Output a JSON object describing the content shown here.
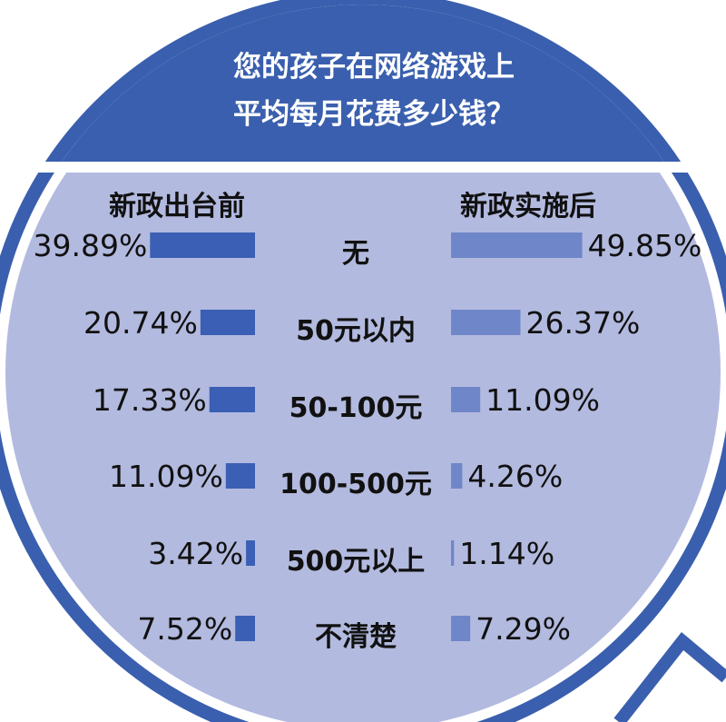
{
  "title": {
    "line1": "您的孩子在网络游戏上",
    "line2": "平均每月花费多少钱？"
  },
  "colors": {
    "dark_blue": "#3a5fae",
    "light_circle": "#b3badf",
    "before_bar": "#3a5fb4",
    "after_bar": "#6f86c8"
  },
  "chart_data": {
    "type": "bar",
    "orientation": "horizontal-butterfly",
    "categories": [
      "无",
      "50元以内",
      "50-100元",
      "100-500元",
      "500元以上",
      "不清楚"
    ],
    "unit": "%",
    "series": [
      {
        "name": "新政出台前",
        "values": [
          39.89,
          20.74,
          17.33,
          11.09,
          3.42,
          7.52
        ]
      },
      {
        "name": "新政实施后",
        "values": [
          49.85,
          26.37,
          11.09,
          4.26,
          1.14,
          7.29
        ]
      }
    ],
    "labels_before": [
      "39.89%",
      "20.74%",
      "17.33%",
      "11.09%",
      "3.42%",
      "7.52%"
    ],
    "labels_after": [
      "49.85%",
      "26.37%",
      "11.09%",
      "4.26%",
      "1.14%",
      "7.29%"
    ]
  }
}
